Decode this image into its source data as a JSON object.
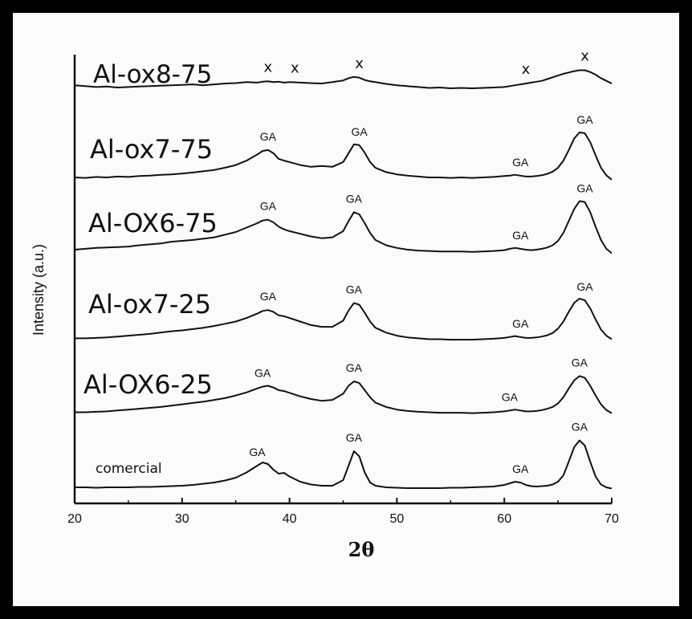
{
  "chart_data": {
    "type": "line",
    "xlabel": "2θ",
    "ylabel": "Intensity (a.u.)",
    "xlim": [
      20,
      70
    ],
    "xticks": [
      20,
      30,
      40,
      50,
      60,
      70
    ],
    "x": [
      20,
      21,
      22,
      23,
      24,
      25,
      26,
      27,
      28,
      29,
      30,
      31,
      32,
      33,
      34,
      35,
      36,
      37,
      37.5,
      38,
      38.5,
      39,
      39.5,
      40,
      41,
      42,
      43,
      44,
      45,
      45.5,
      46,
      46.5,
      47,
      47.5,
      48,
      49,
      50,
      51,
      52,
      53,
      54,
      55,
      56,
      57,
      58,
      59,
      60,
      60.5,
      61,
      61.5,
      62,
      62.5,
      63,
      63.5,
      64,
      64.5,
      65,
      65.5,
      66,
      66.5,
      67,
      67.5,
      68,
      68.5,
      69,
      69.5,
      70
    ],
    "series": [
      {
        "name": "Al-ox8-75",
        "values": [
          0.36,
          0.34,
          0.32,
          0.33,
          0.31,
          0.32,
          0.33,
          0.34,
          0.35,
          0.36,
          0.37,
          0.38,
          0.36,
          0.38,
          0.4,
          0.41,
          0.43,
          0.42,
          0.44,
          0.45,
          0.43,
          0.44,
          0.42,
          0.43,
          0.42,
          0.41,
          0.4,
          0.43,
          0.47,
          0.52,
          0.55,
          0.53,
          0.48,
          0.45,
          0.43,
          0.39,
          0.36,
          0.34,
          0.32,
          0.3,
          0.31,
          0.29,
          0.3,
          0.29,
          0.3,
          0.31,
          0.32,
          0.34,
          0.36,
          0.38,
          0.4,
          0.42,
          0.44,
          0.46,
          0.5,
          0.54,
          0.58,
          0.62,
          0.65,
          0.68,
          0.7,
          0.7,
          0.66,
          0.6,
          0.52,
          0.46,
          0.4
        ]
      },
      {
        "name": "Al-ox7-75",
        "values": [
          0.2,
          0.19,
          0.21,
          0.2,
          0.22,
          0.21,
          0.23,
          0.24,
          0.26,
          0.27,
          0.29,
          0.31,
          0.34,
          0.37,
          0.42,
          0.48,
          0.58,
          0.72,
          0.8,
          0.82,
          0.75,
          0.62,
          0.58,
          0.55,
          0.48,
          0.44,
          0.46,
          0.44,
          0.55,
          0.75,
          0.95,
          0.93,
          0.76,
          0.55,
          0.42,
          0.32,
          0.27,
          0.24,
          0.22,
          0.2,
          0.2,
          0.19,
          0.2,
          0.19,
          0.2,
          0.21,
          0.23,
          0.24,
          0.26,
          0.24,
          0.22,
          0.22,
          0.23,
          0.25,
          0.28,
          0.33,
          0.42,
          0.58,
          0.82,
          1.08,
          1.22,
          1.2,
          1.0,
          0.7,
          0.42,
          0.25,
          0.15
        ]
      },
      {
        "name": "Al-OX6-75",
        "values": [
          0.2,
          0.22,
          0.24,
          0.25,
          0.26,
          0.27,
          0.3,
          0.32,
          0.34,
          0.38,
          0.4,
          0.42,
          0.45,
          0.48,
          0.54,
          0.6,
          0.7,
          0.8,
          0.86,
          0.88,
          0.82,
          0.72,
          0.66,
          0.62,
          0.56,
          0.5,
          0.46,
          0.48,
          0.62,
          0.85,
          1.05,
          1.0,
          0.8,
          0.58,
          0.42,
          0.3,
          0.24,
          0.2,
          0.18,
          0.17,
          0.16,
          0.16,
          0.16,
          0.15,
          0.16,
          0.17,
          0.19,
          0.22,
          0.24,
          0.22,
          0.2,
          0.19,
          0.2,
          0.22,
          0.25,
          0.3,
          0.4,
          0.58,
          0.85,
          1.12,
          1.3,
          1.28,
          1.05,
          0.72,
          0.42,
          0.22,
          0.12
        ]
      },
      {
        "name": "Al-ox7-25",
        "values": [
          0.12,
          0.12,
          0.13,
          0.14,
          0.16,
          0.18,
          0.2,
          0.22,
          0.25,
          0.28,
          0.3,
          0.33,
          0.36,
          0.4,
          0.45,
          0.5,
          0.58,
          0.68,
          0.74,
          0.76,
          0.72,
          0.64,
          0.62,
          0.58,
          0.5,
          0.42,
          0.38,
          0.38,
          0.52,
          0.75,
          0.92,
          0.88,
          0.7,
          0.5,
          0.36,
          0.25,
          0.18,
          0.14,
          0.12,
          0.1,
          0.1,
          0.09,
          0.09,
          0.09,
          0.1,
          0.11,
          0.13,
          0.15,
          0.17,
          0.15,
          0.13,
          0.13,
          0.14,
          0.16,
          0.19,
          0.24,
          0.34,
          0.5,
          0.72,
          0.92,
          1.02,
          0.98,
          0.8,
          0.55,
          0.32,
          0.18,
          0.1
        ]
      },
      {
        "name": "Al-OX6-25",
        "values": [
          0.1,
          0.1,
          0.11,
          0.12,
          0.14,
          0.16,
          0.18,
          0.2,
          0.22,
          0.25,
          0.28,
          0.31,
          0.34,
          0.38,
          0.42,
          0.48,
          0.55,
          0.64,
          0.68,
          0.7,
          0.66,
          0.6,
          0.58,
          0.54,
          0.46,
          0.4,
          0.36,
          0.38,
          0.52,
          0.7,
          0.8,
          0.76,
          0.6,
          0.44,
          0.32,
          0.22,
          0.16,
          0.13,
          0.11,
          0.1,
          0.09,
          0.09,
          0.09,
          0.08,
          0.09,
          0.1,
          0.12,
          0.14,
          0.16,
          0.14,
          0.12,
          0.12,
          0.13,
          0.15,
          0.18,
          0.22,
          0.3,
          0.44,
          0.64,
          0.82,
          0.92,
          0.88,
          0.7,
          0.48,
          0.28,
          0.15,
          0.08
        ]
      },
      {
        "name": "comercial",
        "values": [
          0.08,
          0.08,
          0.07,
          0.08,
          0.08,
          0.08,
          0.09,
          0.09,
          0.1,
          0.11,
          0.12,
          0.14,
          0.17,
          0.2,
          0.25,
          0.32,
          0.45,
          0.62,
          0.7,
          0.66,
          0.52,
          0.42,
          0.44,
          0.35,
          0.22,
          0.15,
          0.12,
          0.12,
          0.26,
          0.62,
          0.98,
          0.85,
          0.45,
          0.2,
          0.12,
          0.08,
          0.07,
          0.06,
          0.06,
          0.06,
          0.06,
          0.07,
          0.07,
          0.08,
          0.09,
          0.1,
          0.14,
          0.18,
          0.22,
          0.2,
          0.14,
          0.11,
          0.1,
          0.11,
          0.12,
          0.15,
          0.22,
          0.38,
          0.72,
          1.08,
          1.25,
          1.12,
          0.72,
          0.35,
          0.15,
          0.08,
          0.05
        ]
      }
    ],
    "series_labels": [
      "Al-ox8-75",
      "Al-ox7-75",
      "Al-OX6-75",
      "Al-ox7-25",
      "Al-OX6-25",
      "comercial"
    ],
    "annotations": [
      [
        {
          "text": "x",
          "x": 38
        },
        {
          "text": "x",
          "x": 40.5
        },
        {
          "text": "x",
          "x": 46.5
        },
        {
          "text": "x",
          "x": 62
        },
        {
          "text": "x",
          "x": 67.5
        }
      ],
      [
        {
          "text": "GA",
          "x": 38
        },
        {
          "text": "GA",
          "x": 46.5
        },
        {
          "text": "GA",
          "x": 61.5
        },
        {
          "text": "GA",
          "x": 67.5
        }
      ],
      [
        {
          "text": "GA",
          "x": 38
        },
        {
          "text": "GA",
          "x": 46
        },
        {
          "text": "GA",
          "x": 61.5
        },
        {
          "text": "GA",
          "x": 67.5
        }
      ],
      [
        {
          "text": "GA",
          "x": 38
        },
        {
          "text": "GA",
          "x": 46
        },
        {
          "text": "GA",
          "x": 61.5
        },
        {
          "text": "GA",
          "x": 67.5
        }
      ],
      [
        {
          "text": "GA",
          "x": 37.5
        },
        {
          "text": "GA",
          "x": 46
        },
        {
          "text": "GA",
          "x": 60.5
        },
        {
          "text": "GA",
          "x": 67
        }
      ],
      [
        {
          "text": "GA",
          "x": 37
        },
        {
          "text": "GA",
          "x": 46
        },
        {
          "text": "GA",
          "x": 61.5
        },
        {
          "text": "GA",
          "x": 67
        }
      ]
    ],
    "grid": false,
    "legend": "none",
    "color": "#111111"
  }
}
